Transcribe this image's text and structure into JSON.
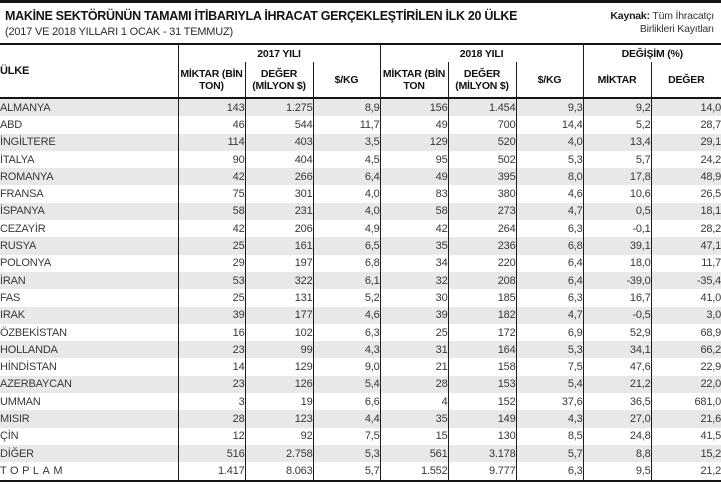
{
  "page": {
    "title": "MAKİNE SEKTÖRÜNÜN TAMAMI İTİBARIYLA İHRACAT GERÇEKLEŞTİRİLEN İLK 20 ÜLKE",
    "subtitle": "(2017 VE 2018 YILLARI 1 OCAK - 31 TEMMUZ)",
    "source": {
      "label": "Kaynak:",
      "line1": " Tüm İhracatçı",
      "line2": "Birlikleri Kayıtları"
    }
  },
  "table": {
    "country_header": "ÜLKE",
    "groups": [
      {
        "label": "2017 YILI",
        "columns": [
          "MİKTAR (BİN TON)",
          "DEĞER (MİLYON $)",
          "$/KG"
        ]
      },
      {
        "label": "2018 YILI",
        "columns": [
          "MİKTAR (BİN TON",
          "DEĞER (MİLYON $)",
          "$/KG"
        ]
      },
      {
        "label": "DEĞİŞİM (%)",
        "columns": [
          "MİKTAR",
          "DEĞER"
        ]
      }
    ],
    "rows": [
      [
        "ALMANYA",
        "143",
        "1.275",
        "8,9",
        "156",
        "1.454",
        "9,3",
        "9,2",
        "14,0"
      ],
      [
        "ABD",
        "46",
        "544",
        "11,7",
        "49",
        "700",
        "14,4",
        "5,2",
        "28,7"
      ],
      [
        "İNGİLTERE",
        "114",
        "403",
        "3,5",
        "129",
        "520",
        "4,0",
        "13,4",
        "29,1"
      ],
      [
        "İTALYA",
        "90",
        "404",
        "4,5",
        "95",
        "502",
        "5,3",
        "5,7",
        "24,2"
      ],
      [
        "ROMANYA",
        "42",
        "266",
        "6,4",
        "49",
        "395",
        "8,0",
        "17,8",
        "48,9"
      ],
      [
        "FRANSA",
        "75",
        "301",
        "4,0",
        "83",
        "380",
        "4,6",
        "10,6",
        "26,5"
      ],
      [
        "İSPANYA",
        "58",
        "231",
        "4,0",
        "58",
        "273",
        "4,7",
        "0,5",
        "18,1"
      ],
      [
        "CEZAYİR",
        "42",
        "206",
        "4,9",
        "42",
        "264",
        "6,3",
        "-0,1",
        "28,2"
      ],
      [
        "RUSYA",
        "25",
        "161",
        "6,5",
        "35",
        "236",
        "6,8",
        "39,1",
        "47,1"
      ],
      [
        "POLONYA",
        "29",
        "197",
        "6,8",
        "34",
        "220",
        "6,4",
        "18,0",
        "11,7"
      ],
      [
        "İRAN",
        "53",
        "322",
        "6,1",
        "32",
        "208",
        "6,4",
        "-39,0",
        "-35,4"
      ],
      [
        "FAS",
        "25",
        "131",
        "5,2",
        "30",
        "185",
        "6,3",
        "16,7",
        "41,0"
      ],
      [
        "IRAK",
        "39",
        "177",
        "4,6",
        "39",
        "182",
        "4,7",
        "-0,5",
        "3,0"
      ],
      [
        "ÖZBEKİSTAN",
        "16",
        "102",
        "6,3",
        "25",
        "172",
        "6,9",
        "52,9",
        "68,9"
      ],
      [
        "HOLLANDA",
        "23",
        "99",
        "4,3",
        "31",
        "164",
        "5,3",
        "34,1",
        "66,2"
      ],
      [
        "HİNDİSTAN",
        "14",
        "129",
        "9,0",
        "21",
        "158",
        "7,5",
        "47,6",
        "22,9"
      ],
      [
        "AZERBAYCAN",
        "23",
        "126",
        "5,4",
        "28",
        "153",
        "5,4",
        "21,2",
        "22,0"
      ],
      [
        "UMMAN",
        "3",
        "19",
        "6,6",
        "4",
        "152",
        "37,6",
        "36,5",
        "681,0"
      ],
      [
        "MISIR",
        "28",
        "123",
        "4,4",
        "35",
        "149",
        "4,3",
        "27,0",
        "21,6"
      ],
      [
        "ÇİN",
        "12",
        "92",
        "7,5",
        "15",
        "130",
        "8,5",
        "24,8",
        "41,5"
      ],
      [
        "DİĞER",
        "516",
        "2.758",
        "5,3",
        "561",
        "3.178",
        "5,7",
        "8,8",
        "15,2"
      ]
    ],
    "total_row": [
      "TOPLAM",
      "1.417",
      "8.063",
      "5,7",
      "1.552",
      "9.777",
      "6,3",
      "9,5",
      "21,2"
    ]
  },
  "colors": {
    "stripe": "#e8e8e8",
    "line": "#1c1c1c",
    "text": "#383838"
  }
}
